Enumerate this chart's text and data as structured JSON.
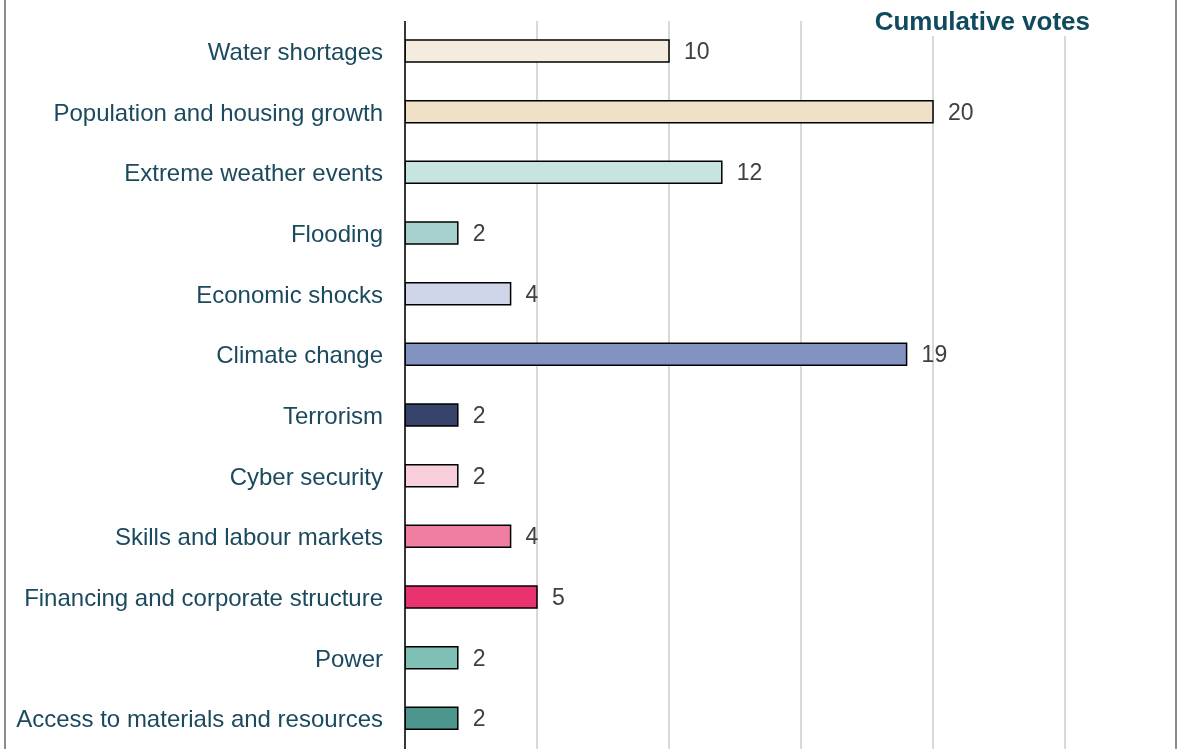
{
  "chart_data": {
    "type": "bar",
    "orientation": "horizontal",
    "title": "Cumulative votes",
    "categories": [
      "Water shortages",
      "Population and housing growth",
      "Extreme weather events",
      "Flooding",
      "Economic shocks",
      "Climate change",
      "Terrorism",
      "Cyber security",
      "Skills and labour markets",
      "Financing and corporate structure",
      "Power",
      "Access to materials and resources"
    ],
    "values": [
      10,
      20,
      12,
      2,
      4,
      19,
      2,
      2,
      4,
      5,
      2,
      2
    ],
    "colors": [
      "#f5ece0",
      "#efe0c8",
      "#c8e4e0",
      "#a6d1cc",
      "#cfd6ea",
      "#8293c2",
      "#37436b",
      "#f9cfdc",
      "#ef7ea1",
      "#e8336e",
      "#7fbfb6",
      "#4d968e"
    ],
    "xlim": [
      0,
      25
    ],
    "xticks": [
      {
        "value": 0,
        "label": null
      },
      {
        "value": 5,
        "label": null
      },
      {
        "value": 10,
        "label": null
      },
      {
        "value": 15,
        "label": null
      },
      {
        "value": 20,
        "label": null
      },
      {
        "value": 25,
        "label": null
      }
    ],
    "grid": "x",
    "data_labels": true,
    "tick_labels": "y"
  }
}
